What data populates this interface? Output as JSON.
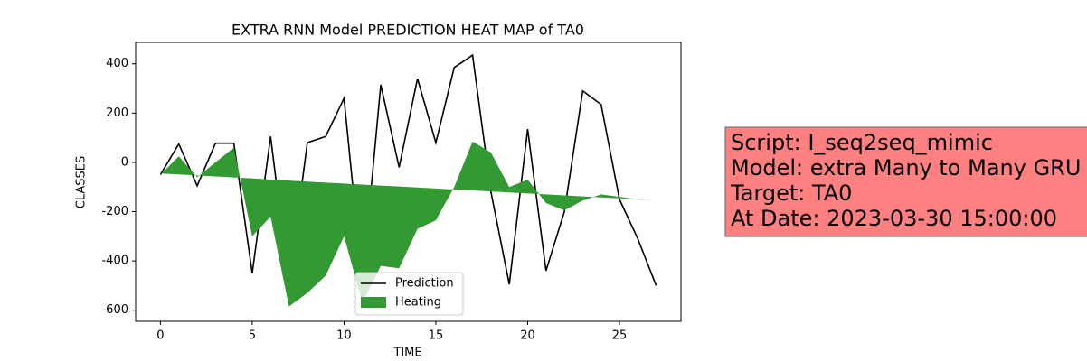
{
  "chart_data": {
    "type": "line",
    "title": "EXTRA RNN Model PREDICTION HEAT MAP of TA0",
    "xlabel": "TIME",
    "ylabel": "CLASSES",
    "x": [
      0,
      1,
      2,
      3,
      4,
      5,
      6,
      7,
      8,
      9,
      10,
      11,
      12,
      13,
      14,
      15,
      16,
      17,
      18,
      19,
      20,
      21,
      22,
      23,
      24,
      25,
      26,
      27
    ],
    "series": [
      {
        "name": "Prediction",
        "color": "#000000",
        "values": [
          -50,
          75,
          -95,
          78,
          78,
          -450,
          105,
          -495,
          80,
          105,
          260,
          -490,
          315,
          -20,
          340,
          80,
          385,
          435,
          -120,
          -495,
          135,
          -440,
          -200,
          290,
          235,
          -150,
          -310,
          -500
        ]
      },
      {
        "name": "Heating",
        "color": "#339933",
        "fill": true,
        "values": [
          -50,
          25,
          -60,
          0,
          60,
          -300,
          -220,
          -585,
          -530,
          -460,
          -300,
          -570,
          -420,
          -430,
          -270,
          -235,
          -100,
          85,
          40,
          -100,
          -70,
          -165,
          -195,
          -155,
          -130,
          -140,
          -150,
          -155
        ],
        "base": [
          -45,
          -49,
          -53,
          -57,
          -61,
          -65,
          -70,
          -74,
          -78,
          -82,
          -86,
          -90,
          -94,
          -98,
          -102,
          -106,
          -110,
          -114,
          -118,
          -122,
          -126,
          -130,
          -134,
          -138,
          -142,
          -146,
          -151,
          -155
        ]
      }
    ],
    "xlim": [
      -1.35,
      28.35
    ],
    "xticks": [
      0,
      5,
      10,
      15,
      20,
      25
    ],
    "ylim": [
      -645,
      487
    ],
    "yticks": [
      -600,
      -400,
      -200,
      0,
      200,
      400
    ],
    "legend": "lower center",
    "annotation": [
      "Script: I_seq2seq_mimic",
      "Model: extra Many to Many GRU",
      "Target: TA0",
      "At Date: 2023-03-30 15:00:00"
    ],
    "annotation_color": "#ff8080"
  }
}
